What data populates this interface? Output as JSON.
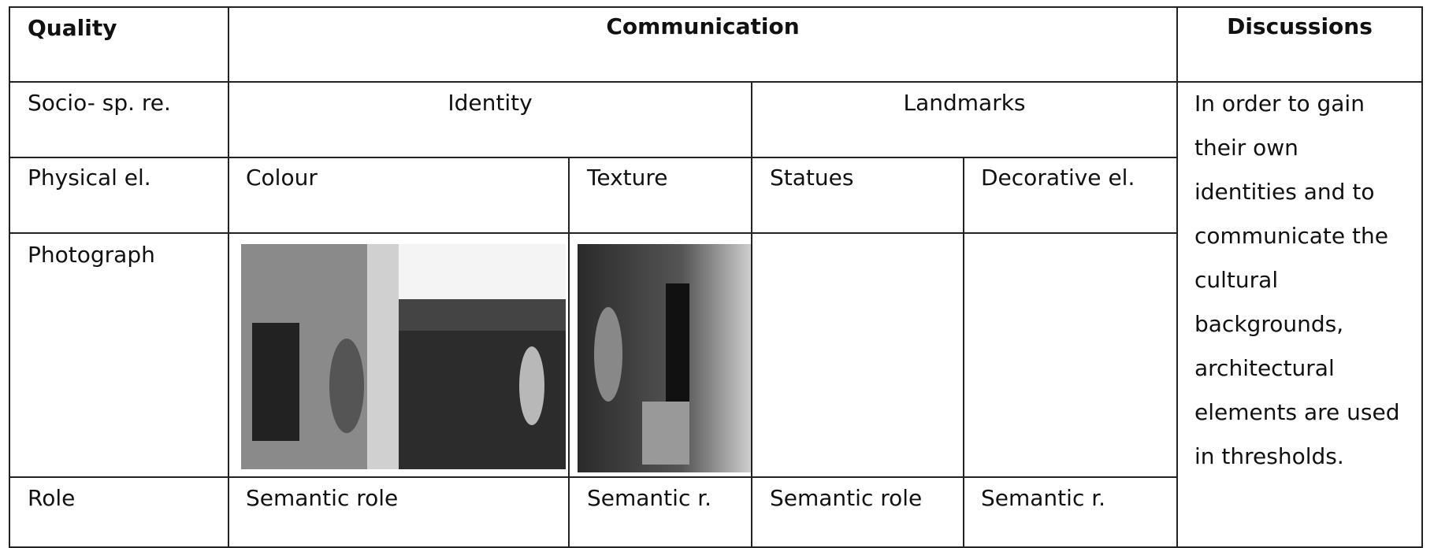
{
  "header": {
    "quality": "Quality",
    "communication": "Communication",
    "discussions": "Discussions"
  },
  "rows": {
    "socio_spatial": {
      "label": "Socio- sp. re.",
      "cells": [
        "Identity",
        "Landmarks"
      ]
    },
    "physical": {
      "label": "Physical el.",
      "cells": [
        "Colour",
        "Texture",
        "Statues",
        "Decorative el."
      ]
    },
    "photograph": {
      "label": "Photograph"
    },
    "role": {
      "label": "Role",
      "cells": [
        "Semantic role",
        "Semantic r.",
        "Semantic role",
        "Semantic r."
      ]
    }
  },
  "discussion": "In order to gain their own identities and to communicate the cultural backgrounds, architectural elements are used in thresholds."
}
